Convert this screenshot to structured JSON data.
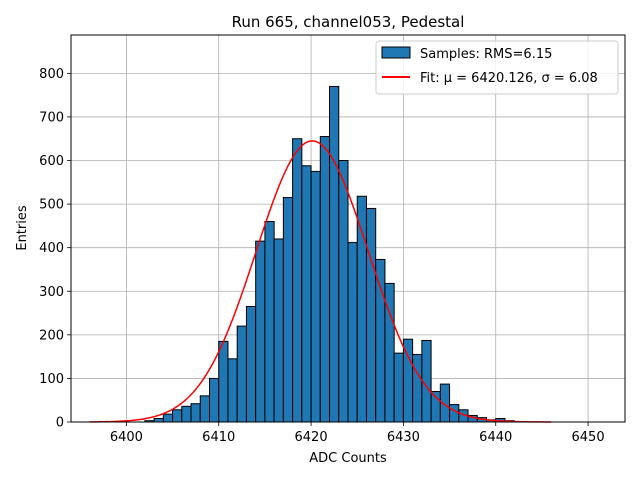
{
  "chart_data": {
    "type": "bar",
    "title": "Run 665, channel053, Pedestal",
    "xlabel": "ADC Counts",
    "ylabel": "Entries",
    "xlim": [
      6394,
      6454
    ],
    "ylim": [
      0,
      888
    ],
    "xticks": [
      6400,
      6410,
      6420,
      6430,
      6440,
      6450
    ],
    "yticks": [
      0,
      100,
      200,
      300,
      400,
      500,
      600,
      700,
      800
    ],
    "grid": true,
    "legend_position": "top-right",
    "bin_start": 6402,
    "bin_width": 1,
    "counts": [
      3,
      8,
      18,
      28,
      36,
      42,
      60,
      100,
      185,
      145,
      220,
      265,
      415,
      460,
      420,
      515,
      650,
      588,
      575,
      655,
      770,
      600,
      412,
      518,
      490,
      373,
      318,
      158,
      190,
      155,
      187,
      70,
      87,
      40,
      28,
      15,
      10,
      5,
      8,
      3
    ],
    "histogram_label": "Samples: RMS=6.15",
    "histogram_color": "#1f77b4",
    "fit": {
      "label": "Fit: μ = 6420.126, σ = 6.08",
      "mu": 6420.126,
      "sigma": 6.08,
      "amplitude": 645,
      "x_range": [
        6396,
        6446
      ],
      "color": "#ff0000"
    }
  }
}
